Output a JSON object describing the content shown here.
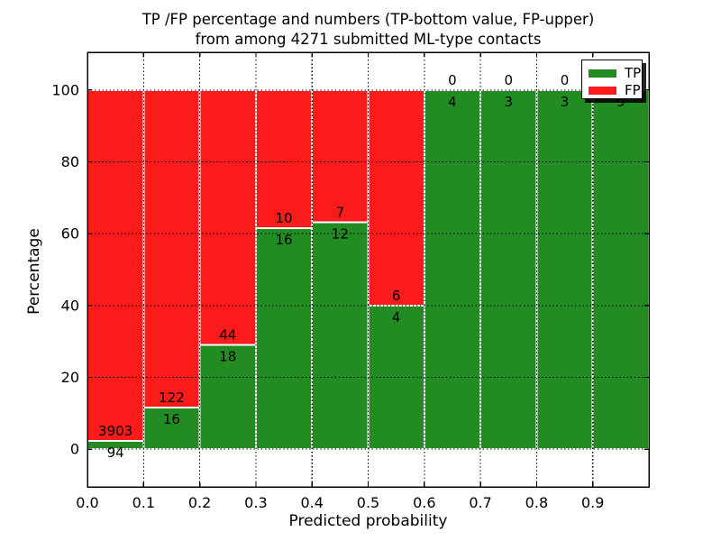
{
  "chart_data": {
    "type": "bar",
    "stacked": true,
    "orientation": "vertical",
    "title_lines": [
      "TP /FP percentage and numbers (TP-bottom value, FP-upper)",
      "from among 4271 submitted ML-type contacts"
    ],
    "xlabel": "Predicted probability",
    "ylabel": "Percentage",
    "total_submitted_contacts": 4271,
    "x_bin_edges": [
      0.0,
      0.1,
      0.2,
      0.3,
      0.4,
      0.5,
      0.6,
      0.7,
      0.8,
      0.9,
      1.0
    ],
    "categories": [
      "0.0-0.1",
      "0.1-0.2",
      "0.2-0.3",
      "0.3-0.4",
      "0.4-0.5",
      "0.5-0.6",
      "0.6-0.7",
      "0.7-0.8",
      "0.8-0.9",
      "0.9-1.0"
    ],
    "series": [
      {
        "name": "TP",
        "color": "#228b22",
        "counts": [
          94,
          16,
          18,
          16,
          12,
          4,
          4,
          3,
          3,
          9
        ]
      },
      {
        "name": "FP",
        "color": "#fb1b1b",
        "counts": [
          3903,
          122,
          44,
          10,
          7,
          6,
          0,
          0,
          0,
          0
        ]
      }
    ],
    "tp_percent_of_bin": [
      2.4,
      11.6,
      29.0,
      61.5,
      63.2,
      40.0,
      100.0,
      100.0,
      100.0,
      100.0
    ],
    "bars_stack_to_percent": 100,
    "yticks": [
      0,
      20,
      40,
      60,
      80,
      100
    ],
    "xtick_labels": [
      "0.0",
      "0.1",
      "0.2",
      "0.3",
      "0.4",
      "0.5",
      "0.6",
      "0.7",
      "0.8",
      "0.9"
    ],
    "xlim": [
      0.0,
      1.0
    ],
    "ylim": [
      -10.5,
      110.5
    ],
    "grid": true,
    "grid_style": "dotted",
    "axis_color": "#000000",
    "bar_edge_color": "#ffffff",
    "legend": {
      "position": "upper right",
      "shadow": true
    }
  }
}
